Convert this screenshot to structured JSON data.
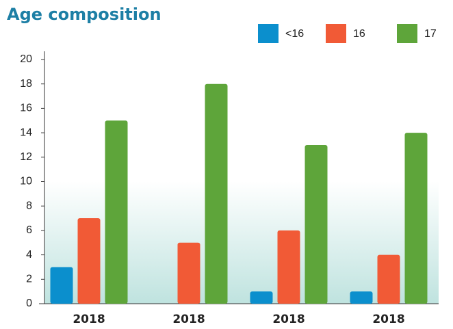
{
  "chart_data": {
    "type": "bar",
    "title": "Age composition",
    "categories": [
      "2018",
      "2018",
      "2018",
      "2018"
    ],
    "series": [
      {
        "name": "<16",
        "color": "#0b8fcd",
        "values": [
          3,
          0,
          1,
          1
        ]
      },
      {
        "name": "16",
        "color": "#f15a36",
        "values": [
          7,
          5,
          6,
          4
        ]
      },
      {
        "name": "17",
        "color": "#5ea53a",
        "values": [
          15,
          18,
          13,
          14
        ]
      }
    ],
    "ylim": [
      0,
      20
    ],
    "yticks": [
      0,
      2,
      4,
      6,
      8,
      10,
      12,
      14,
      16,
      18,
      20
    ]
  }
}
